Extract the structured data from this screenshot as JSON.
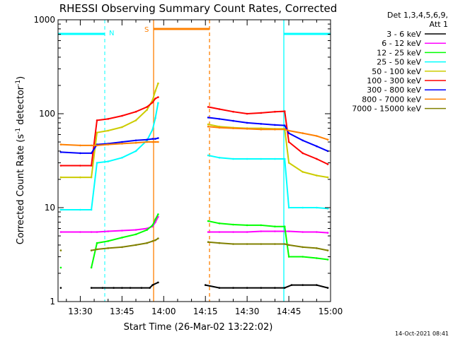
{
  "chart_data": {
    "type": "line",
    "title": "RHESSI Observing Summary Count Rates, Corrected",
    "xlabel": "Start Time (26-Mar-02 13:22:02)",
    "ylabel": "Corrected Count Rate (s",
    "ylabel_sup1": "-1",
    "ylabel_mid": " detector",
    "ylabel_sup2": "-1",
    "ylabel_end": ")",
    "y_scale": "log",
    "ylim": [
      1,
      1000
    ],
    "xlim_minutes": [
      22.0,
      120.0
    ],
    "x_ticks": [
      {
        "label": "13:30",
        "minute": 30
      },
      {
        "label": "13:45",
        "minute": 45
      },
      {
        "label": "14:00",
        "minute": 60
      },
      {
        "label": "14:15",
        "minute": 75
      },
      {
        "label": "14:30",
        "minute": 90
      },
      {
        "label": "14:45",
        "minute": 105
      },
      {
        "label": "15:00",
        "minute": 120
      }
    ],
    "y_ticks": [
      {
        "label": "1",
        "value": 1
      },
      {
        "label": "10",
        "value": 10
      },
      {
        "label": "100",
        "value": 100
      },
      {
        "label": "1000",
        "value": 1000
      }
    ],
    "legend": {
      "header1": "Det 1,3,4,5,6,9,",
      "header2": "Att 1",
      "placement": "right"
    },
    "footer_timestamp": "14-Oct-2021 08:41",
    "markers": [
      {
        "label": "N",
        "color": "#00ffff"
      },
      {
        "label": "S",
        "color": "#ff8000"
      }
    ],
    "series": [
      {
        "name": "3 - 6 keV",
        "color": "#000000",
        "points": [
          [
            23,
            1.4
          ],
          [
            34,
            1.4
          ],
          [
            38,
            1.4
          ],
          [
            42,
            1.4
          ],
          [
            45,
            1.4
          ],
          [
            48,
            1.4
          ],
          [
            52,
            1.4
          ],
          [
            55,
            1.4
          ],
          [
            56,
            1.5
          ],
          [
            58,
            1.6
          ],
          [
            75,
            1.5
          ],
          [
            80,
            1.4
          ],
          [
            85,
            1.4
          ],
          [
            90,
            1.4
          ],
          [
            95,
            1.4
          ],
          [
            100,
            1.4
          ],
          [
            103.5,
            1.4
          ],
          [
            106,
            1.5
          ],
          [
            110,
            1.5
          ],
          [
            115,
            1.5
          ],
          [
            119,
            1.4
          ]
        ]
      },
      {
        "name": "6 - 12 keV",
        "color": "#ff00ff",
        "points": [
          [
            23,
            5.5
          ],
          [
            30,
            5.5
          ],
          [
            34,
            5.5
          ],
          [
            36,
            5.5
          ],
          [
            40,
            5.6
          ],
          [
            45,
            5.7
          ],
          [
            50,
            5.8
          ],
          [
            54,
            6.0
          ],
          [
            56,
            6.3
          ],
          [
            57,
            7.0
          ],
          [
            58,
            8.0
          ],
          [
            76,
            5.5
          ],
          [
            80,
            5.5
          ],
          [
            85,
            5.5
          ],
          [
            90,
            5.5
          ],
          [
            95,
            5.6
          ],
          [
            100,
            5.6
          ],
          [
            103.5,
            5.6
          ],
          [
            105,
            5.6
          ],
          [
            110,
            5.5
          ],
          [
            115,
            5.5
          ],
          [
            119,
            5.4
          ]
        ]
      },
      {
        "name": "12 - 25 keV",
        "color": "#00ff00",
        "points": [
          [
            23,
            2.3
          ],
          [
            34,
            2.3
          ],
          [
            36,
            4.2
          ],
          [
            40,
            4.4
          ],
          [
            45,
            4.8
          ],
          [
            50,
            5.2
          ],
          [
            54,
            5.8
          ],
          [
            56,
            6.5
          ],
          [
            57,
            7.5
          ],
          [
            58,
            8.5
          ],
          [
            76,
            7.2
          ],
          [
            80,
            6.8
          ],
          [
            85,
            6.6
          ],
          [
            90,
            6.5
          ],
          [
            95,
            6.5
          ],
          [
            100,
            6.3
          ],
          [
            103.5,
            6.3
          ],
          [
            105,
            3.0
          ],
          [
            110,
            3.0
          ],
          [
            115,
            2.9
          ],
          [
            119,
            2.8
          ]
        ]
      },
      {
        "name": "25 - 50 keV",
        "color": "#00ffff",
        "points": [
          [
            23,
            9.5
          ],
          [
            30,
            9.5
          ],
          [
            34,
            9.5
          ],
          [
            36,
            30
          ],
          [
            40,
            31
          ],
          [
            45,
            34
          ],
          [
            50,
            40
          ],
          [
            54,
            52
          ],
          [
            56,
            68
          ],
          [
            57,
            90
          ],
          [
            58,
            130
          ],
          [
            76,
            36
          ],
          [
            80,
            34
          ],
          [
            85,
            33
          ],
          [
            90,
            33
          ],
          [
            95,
            33
          ],
          [
            100,
            33
          ],
          [
            103.5,
            33
          ],
          [
            105,
            10
          ],
          [
            110,
            10
          ],
          [
            115,
            10
          ],
          [
            119,
            9.8
          ]
        ]
      },
      {
        "name": "50 - 100 keV",
        "color": "#cccc00",
        "points": [
          [
            23,
            21
          ],
          [
            30,
            21
          ],
          [
            34,
            21
          ],
          [
            36,
            63
          ],
          [
            40,
            66
          ],
          [
            45,
            72
          ],
          [
            50,
            85
          ],
          [
            54,
            110
          ],
          [
            56,
            140
          ],
          [
            57,
            175
          ],
          [
            58,
            210
          ],
          [
            76,
            77
          ],
          [
            80,
            73
          ],
          [
            85,
            71
          ],
          [
            90,
            70
          ],
          [
            95,
            70
          ],
          [
            100,
            69
          ],
          [
            103.5,
            69
          ],
          [
            105,
            30
          ],
          [
            110,
            24
          ],
          [
            115,
            22
          ],
          [
            119,
            21
          ]
        ]
      },
      {
        "name": "100 - 300 keV",
        "color": "#ff0000",
        "points": [
          [
            23,
            28
          ],
          [
            30,
            28
          ],
          [
            34,
            28
          ],
          [
            36,
            85
          ],
          [
            40,
            88
          ],
          [
            45,
            95
          ],
          [
            50,
            105
          ],
          [
            54,
            118
          ],
          [
            56,
            132
          ],
          [
            57,
            145
          ],
          [
            58,
            150
          ],
          [
            76,
            118
          ],
          [
            80,
            112
          ],
          [
            85,
            105
          ],
          [
            90,
            100
          ],
          [
            95,
            102
          ],
          [
            100,
            105
          ],
          [
            103.5,
            106
          ],
          [
            105,
            50
          ],
          [
            110,
            38
          ],
          [
            115,
            33
          ],
          [
            119,
            29
          ]
        ]
      },
      {
        "name": "300 - 800 keV",
        "color": "#0000ff",
        "points": [
          [
            23,
            39
          ],
          [
            30,
            38
          ],
          [
            34,
            38
          ],
          [
            36,
            47
          ],
          [
            40,
            48
          ],
          [
            45,
            50
          ],
          [
            50,
            52
          ],
          [
            54,
            53
          ],
          [
            56,
            54
          ],
          [
            57,
            54
          ],
          [
            58,
            55
          ],
          [
            76,
            91
          ],
          [
            80,
            88
          ],
          [
            85,
            84
          ],
          [
            90,
            80
          ],
          [
            95,
            78
          ],
          [
            100,
            76
          ],
          [
            103.5,
            75
          ],
          [
            105,
            62
          ],
          [
            110,
            52
          ],
          [
            115,
            45
          ],
          [
            119,
            40
          ]
        ]
      },
      {
        "name": "800 - 7000 keV",
        "color": "#ff8000",
        "points": [
          [
            23,
            47
          ],
          [
            30,
            46
          ],
          [
            34,
            46
          ],
          [
            36,
            46
          ],
          [
            40,
            47
          ],
          [
            45,
            48
          ],
          [
            50,
            49
          ],
          [
            54,
            50
          ],
          [
            56,
            50
          ],
          [
            57,
            50
          ],
          [
            58,
            50
          ],
          [
            76,
            73
          ],
          [
            80,
            71
          ],
          [
            85,
            70
          ],
          [
            90,
            69
          ],
          [
            95,
            68
          ],
          [
            100,
            68
          ],
          [
            103.5,
            68
          ],
          [
            105,
            66
          ],
          [
            110,
            62
          ],
          [
            115,
            58
          ],
          [
            119,
            53
          ]
        ]
      },
      {
        "name": "7000 - 15000 keV",
        "color": "#808000",
        "points": [
          [
            23,
            3.5
          ],
          [
            34,
            3.5
          ],
          [
            36,
            3.6
          ],
          [
            40,
            3.7
          ],
          [
            45,
            3.8
          ],
          [
            50,
            4.0
          ],
          [
            54,
            4.2
          ],
          [
            56,
            4.4
          ],
          [
            57,
            4.5
          ],
          [
            58,
            4.7
          ],
          [
            76,
            4.3
          ],
          [
            80,
            4.2
          ],
          [
            85,
            4.1
          ],
          [
            90,
            4.1
          ],
          [
            95,
            4.1
          ],
          [
            100,
            4.1
          ],
          [
            103.5,
            4.1
          ],
          [
            105,
            4.0
          ],
          [
            110,
            3.8
          ],
          [
            115,
            3.7
          ],
          [
            119,
            3.5
          ]
        ]
      }
    ]
  }
}
